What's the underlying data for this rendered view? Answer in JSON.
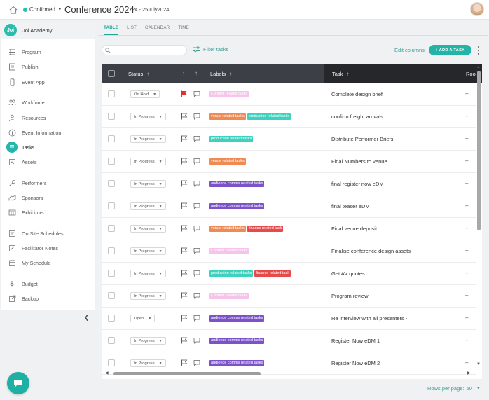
{
  "topbar": {
    "status_label": "Confirmed",
    "title": "Conference 2024",
    "date_range": "24 - 25July2024"
  },
  "sidebar": {
    "brand_logo": "Joi",
    "brand_name": "Joi Academy",
    "items": [
      {
        "label": "Program",
        "icon": "program-icon"
      },
      {
        "label": "Publish",
        "icon": "publish-icon"
      },
      {
        "label": "Event App",
        "icon": "phone-icon"
      },
      {
        "label": "Workforce",
        "icon": "workforce-icon"
      },
      {
        "label": "Resources",
        "icon": "resources-icon"
      },
      {
        "label": "Event Information",
        "icon": "info-icon"
      },
      {
        "label": "Tasks",
        "icon": "tasks-icon"
      },
      {
        "label": "Assets",
        "icon": "assets-icon"
      },
      {
        "label": "Performers",
        "icon": "performers-icon"
      },
      {
        "label": "Sponsors",
        "icon": "sponsors-icon"
      },
      {
        "label": "Exhibitors",
        "icon": "exhibitors-icon"
      },
      {
        "label": "On Site Schedules",
        "icon": "schedule-icon"
      },
      {
        "label": "Facilitator Notes",
        "icon": "notes-icon"
      },
      {
        "label": "My Schedule",
        "icon": "calendar-icon"
      },
      {
        "label": "Budget",
        "icon": "dollar-icon"
      },
      {
        "label": "Backup",
        "icon": "backup-icon"
      }
    ],
    "active": "Tasks"
  },
  "tabs": [
    "TABLE",
    "LIST",
    "CALENDAR",
    "TIME"
  ],
  "toolbar": {
    "search_placeholder": "",
    "filter_label": "Filter tasks",
    "edit_columns": "Edit columns",
    "add_task": "+ ADD A TASK"
  },
  "table": {
    "headers": {
      "status": "Status",
      "labels": "Labels",
      "task": "Task",
      "room": "Roo"
    },
    "rows": [
      {
        "status": "On Hold",
        "flag": "red",
        "labels": [
          {
            "text": "Content related tasks",
            "color": "#f6c3ea"
          }
        ],
        "task": "Complete design brief",
        "room": "–"
      },
      {
        "status": "In Progress",
        "flag": "none",
        "labels": [
          {
            "text": "venue related tasks",
            "color": "#ef8a55"
          },
          {
            "text": "production related tasks",
            "color": "#3ed1bd"
          }
        ],
        "task": "confirm freight arrivals",
        "room": "–"
      },
      {
        "status": "In Progress",
        "flag": "none",
        "labels": [
          {
            "text": "production related tasks",
            "color": "#3ed1bd"
          }
        ],
        "task": "Distribute Performer Briefs",
        "room": "–"
      },
      {
        "status": "In Progress",
        "flag": "none",
        "labels": [
          {
            "text": "venue related tasks",
            "color": "#ef8a55"
          }
        ],
        "task": "Final Numbers to venue",
        "room": "–"
      },
      {
        "status": "In Progress",
        "flag": "none",
        "labels": [
          {
            "text": "audience comms related tasks",
            "color": "#7b52c8"
          }
        ],
        "task": "final register now eDM",
        "room": "–"
      },
      {
        "status": "In Progress",
        "flag": "none",
        "labels": [
          {
            "text": "audience comms related tasks",
            "color": "#7b52c8"
          }
        ],
        "task": "final teaser eDM",
        "room": "–"
      },
      {
        "status": "In Progress",
        "flag": "none",
        "labels": [
          {
            "text": "venue related tasks",
            "color": "#ef8a55"
          },
          {
            "text": "finance related task",
            "color": "#e74a4a"
          }
        ],
        "task": "Final venue deposit",
        "room": "–"
      },
      {
        "status": "In Progress",
        "flag": "none",
        "labels": [
          {
            "text": "Content related tasks",
            "color": "#f6c3ea"
          }
        ],
        "task": "Finalise conference design assets",
        "room": "–"
      },
      {
        "status": "In Progress",
        "flag": "none",
        "labels": [
          {
            "text": "production related tasks",
            "color": "#3ed1bd"
          },
          {
            "text": "finance related task",
            "color": "#e74a4a"
          }
        ],
        "task": "Get AV quotes",
        "room": "–"
      },
      {
        "status": "In Progress",
        "flag": "none",
        "labels": [
          {
            "text": "Content related tasks",
            "color": "#f6c3ea"
          }
        ],
        "task": "Program review",
        "room": "–"
      },
      {
        "status": "Open",
        "flag": "none",
        "labels": [
          {
            "text": "audience comms related tasks",
            "color": "#7b52c8"
          }
        ],
        "task": "Re interview with all presenters -",
        "room": "–"
      },
      {
        "status": "In Progress",
        "flag": "none",
        "labels": [
          {
            "text": "audience comms related tasks",
            "color": "#7b52c8"
          }
        ],
        "task": "Register Now eDM 1",
        "room": "–"
      },
      {
        "status": "In Progress",
        "flag": "none",
        "labels": [
          {
            "text": "audience comms related tasks",
            "color": "#7b52c8"
          }
        ],
        "task": "Register Now eDM 2",
        "room": "–"
      }
    ]
  },
  "pagination": {
    "rows_per_page_label": "Rows per page:",
    "rows_per_page": "50"
  }
}
